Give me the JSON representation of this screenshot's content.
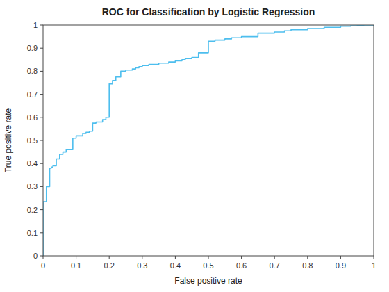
{
  "chart_data": {
    "type": "line",
    "title": "ROC for Classification by Logistic Regression",
    "xlabel": "False positive rate",
    "ylabel": "True positive rate",
    "x": [
      0.0,
      0.0,
      0.01,
      0.01,
      0.02,
      0.02,
      0.025,
      0.025,
      0.03,
      0.03,
      0.04,
      0.04,
      0.05,
      0.05,
      0.06,
      0.06,
      0.07,
      0.07,
      0.09,
      0.09,
      0.1,
      0.1,
      0.12,
      0.12,
      0.13,
      0.13,
      0.14,
      0.14,
      0.15,
      0.15,
      0.16,
      0.16,
      0.18,
      0.18,
      0.19,
      0.19,
      0.2,
      0.2,
      0.21,
      0.21,
      0.22,
      0.22,
      0.235,
      0.235,
      0.25,
      0.25,
      0.27,
      0.27,
      0.28,
      0.28,
      0.29,
      0.29,
      0.3,
      0.3,
      0.32,
      0.32,
      0.35,
      0.35,
      0.38,
      0.38,
      0.4,
      0.4,
      0.42,
      0.42,
      0.43,
      0.43,
      0.45,
      0.45,
      0.47,
      0.47,
      0.5,
      0.5,
      0.52,
      0.52,
      0.55,
      0.55,
      0.57,
      0.57,
      0.6,
      0.6,
      0.65,
      0.65,
      0.7,
      0.7,
      0.73,
      0.73,
      0.75,
      0.75,
      0.8,
      0.8,
      0.85,
      0.85,
      0.9,
      0.9,
      0.93,
      0.93,
      0.95,
      0.95,
      0.97,
      0.97,
      1.0
    ],
    "values": [
      0.0,
      0.235,
      0.235,
      0.3,
      0.3,
      0.38,
      0.38,
      0.385,
      0.385,
      0.39,
      0.39,
      0.42,
      0.42,
      0.44,
      0.44,
      0.45,
      0.45,
      0.46,
      0.46,
      0.51,
      0.51,
      0.52,
      0.52,
      0.53,
      0.53,
      0.535,
      0.535,
      0.54,
      0.54,
      0.575,
      0.575,
      0.58,
      0.58,
      0.59,
      0.59,
      0.6,
      0.6,
      0.745,
      0.745,
      0.76,
      0.76,
      0.775,
      0.775,
      0.8,
      0.8,
      0.805,
      0.805,
      0.81,
      0.81,
      0.815,
      0.815,
      0.82,
      0.82,
      0.825,
      0.825,
      0.83,
      0.83,
      0.835,
      0.835,
      0.84,
      0.84,
      0.845,
      0.845,
      0.85,
      0.85,
      0.855,
      0.855,
      0.86,
      0.86,
      0.88,
      0.88,
      0.93,
      0.93,
      0.935,
      0.935,
      0.94,
      0.94,
      0.945,
      0.945,
      0.95,
      0.95,
      0.965,
      0.965,
      0.97,
      0.97,
      0.975,
      0.975,
      0.98,
      0.98,
      0.985,
      0.985,
      0.99,
      0.99,
      0.995,
      0.995,
      0.997,
      0.997,
      0.998,
      0.998,
      1.0,
      1.0
    ],
    "color": "#4DBEEE",
    "xlim": [
      0,
      1
    ],
    "ylim": [
      0,
      1
    ],
    "xticks": [
      0,
      0.1,
      0.2,
      0.3,
      0.4,
      0.5,
      0.6,
      0.7,
      0.8,
      0.9,
      1
    ],
    "yticks": [
      0,
      0.1,
      0.2,
      0.3,
      0.4,
      0.5,
      0.6,
      0.7,
      0.8,
      0.9,
      1
    ],
    "grid": false
  }
}
